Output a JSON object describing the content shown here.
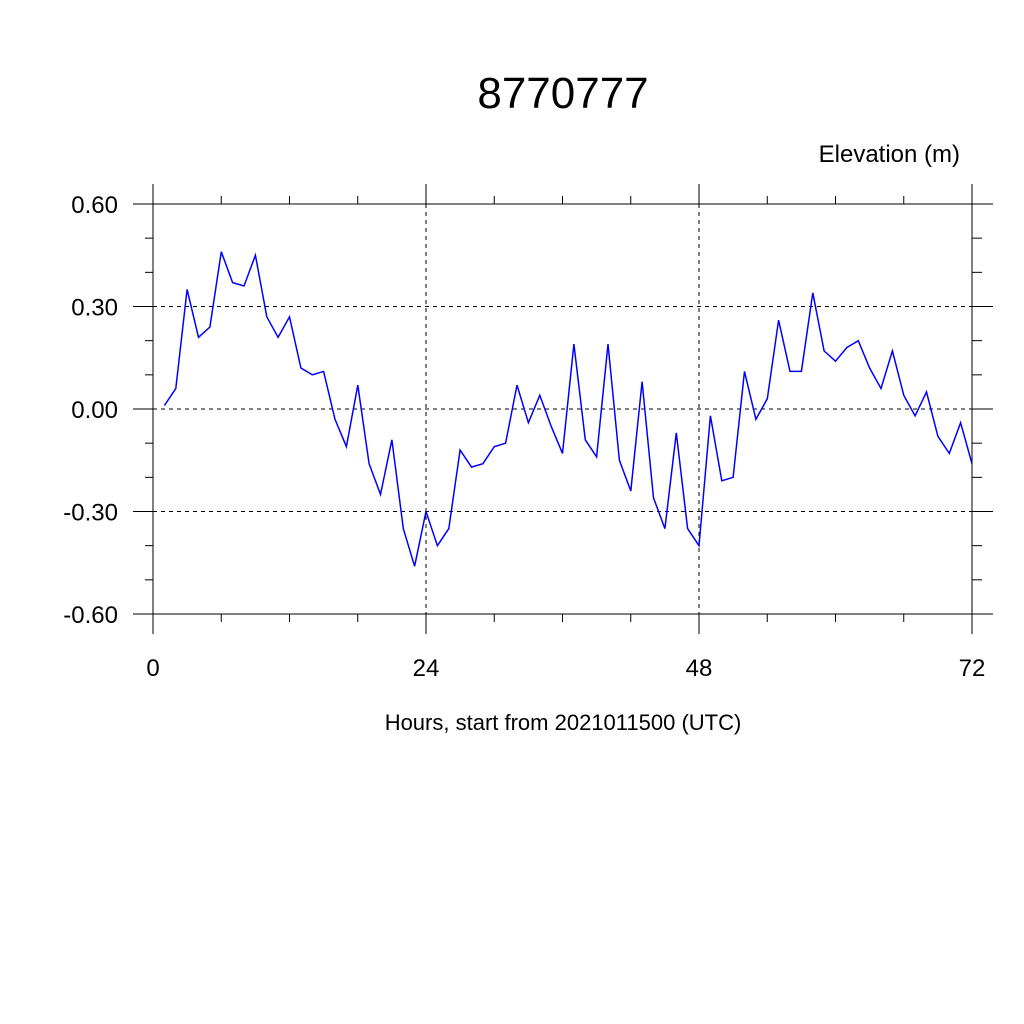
{
  "chart_data": {
    "type": "line",
    "title": "8770777",
    "unit_label": "Elevation (m)",
    "xlabel": "Hours, start from 2021011500 (UTC)",
    "xlim": [
      0,
      72
    ],
    "ylim": [
      -0.6,
      0.6
    ],
    "x_ticks": [
      0,
      24,
      48,
      72
    ],
    "x_tick_labels": [
      "0",
      "24",
      "48",
      "72"
    ],
    "y_ticks": [
      0.6,
      0.3,
      0.0,
      -0.3,
      -0.6
    ],
    "y_tick_labels": [
      "0.60",
      "0.30",
      "0.00",
      "-0.30",
      "-0.60"
    ],
    "grid": "dashed, at major ticks",
    "series": [
      {
        "color": "#0000ff",
        "x": [
          1,
          2,
          3,
          4,
          5,
          6,
          7,
          8,
          9,
          10,
          11,
          12,
          13,
          14,
          15,
          16,
          17,
          18,
          19,
          20,
          21,
          22,
          23,
          24,
          25,
          26,
          27,
          28,
          29,
          30,
          31,
          32,
          33,
          34,
          35,
          36,
          37,
          38,
          39,
          40,
          41,
          42,
          43,
          44,
          45,
          46,
          47,
          48,
          49,
          50,
          51,
          52,
          53,
          54,
          55,
          56,
          57,
          58,
          59,
          60,
          61,
          62,
          63,
          64,
          65,
          66,
          67,
          68,
          69,
          70,
          71,
          72
        ],
        "values": [
          0.01,
          0.06,
          0.35,
          0.21,
          0.24,
          0.46,
          0.37,
          0.36,
          0.45,
          0.27,
          0.21,
          0.27,
          0.12,
          0.1,
          0.11,
          -0.03,
          -0.11,
          0.07,
          -0.16,
          -0.25,
          -0.09,
          -0.35,
          -0.46,
          -0.3,
          -0.4,
          -0.35,
          -0.12,
          -0.17,
          -0.16,
          -0.11,
          -0.1,
          0.07,
          -0.04,
          0.04,
          -0.05,
          -0.13,
          0.19,
          -0.09,
          -0.14,
          0.19,
          -0.15,
          -0.24,
          0.08,
          -0.26,
          -0.35,
          -0.07,
          -0.35,
          -0.4,
          -0.02,
          -0.21,
          -0.2,
          0.11,
          -0.03,
          0.03,
          0.26,
          0.11,
          0.11,
          0.34,
          0.17,
          0.14,
          0.18,
          0.2,
          0.12,
          0.06,
          0.17,
          0.04,
          -0.02,
          0.05,
          -0.08,
          -0.13,
          -0.04,
          -0.16
        ]
      }
    ]
  }
}
